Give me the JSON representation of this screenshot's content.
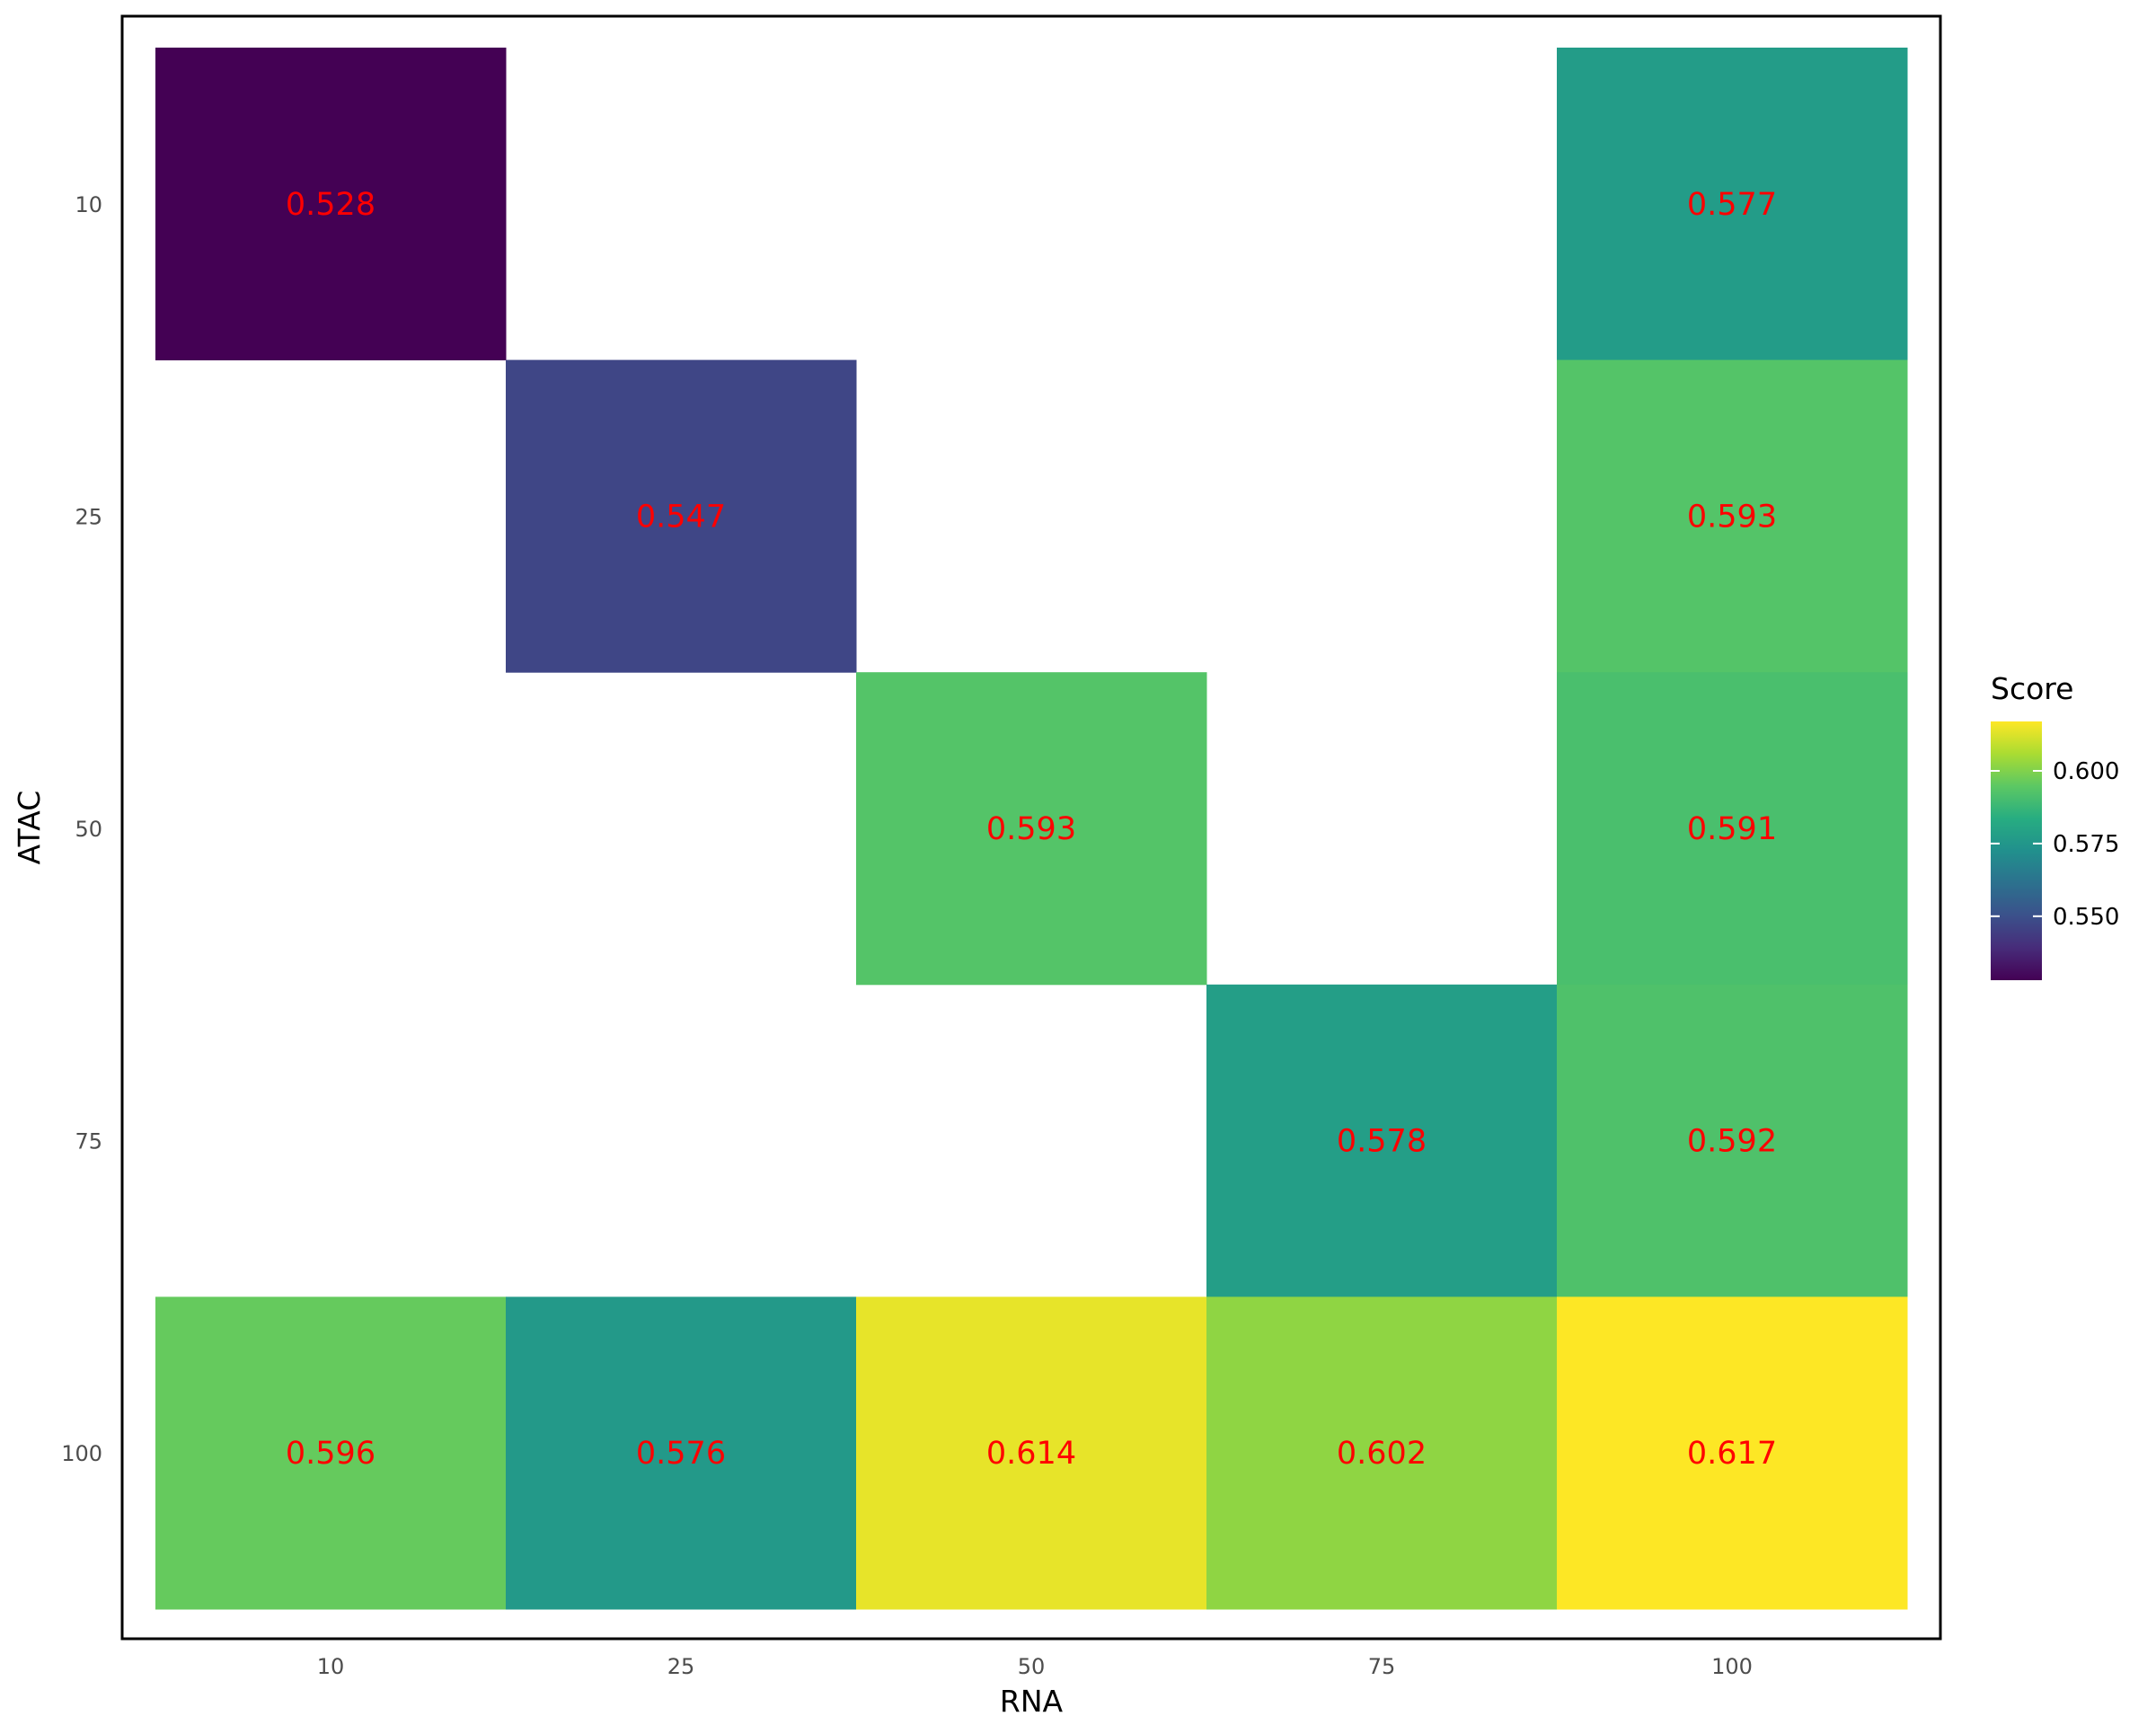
{
  "chart_data": {
    "type": "heatmap",
    "xlabel": "RNA",
    "ylabel": "ATAC",
    "x_categories": [
      "10",
      "25",
      "50",
      "75",
      "100"
    ],
    "y_categories": [
      "10",
      "25",
      "50",
      "75",
      "100"
    ],
    "cells": [
      {
        "x": "10",
        "y": "10",
        "value": 0.528,
        "label": "0.528"
      },
      {
        "x": "100",
        "y": "10",
        "value": 0.577,
        "label": "0.577"
      },
      {
        "x": "25",
        "y": "25",
        "value": 0.547,
        "label": "0.547"
      },
      {
        "x": "100",
        "y": "25",
        "value": 0.593,
        "label": "0.593"
      },
      {
        "x": "50",
        "y": "50",
        "value": 0.593,
        "label": "0.593"
      },
      {
        "x": "100",
        "y": "50",
        "value": 0.591,
        "label": "0.591"
      },
      {
        "x": "75",
        "y": "75",
        "value": 0.578,
        "label": "0.578"
      },
      {
        "x": "100",
        "y": "75",
        "value": 0.592,
        "label": "0.592"
      },
      {
        "x": "10",
        "y": "100",
        "value": 0.596,
        "label": "0.596"
      },
      {
        "x": "25",
        "y": "100",
        "value": 0.576,
        "label": "0.576"
      },
      {
        "x": "50",
        "y": "100",
        "value": 0.614,
        "label": "0.614"
      },
      {
        "x": "75",
        "y": "100",
        "value": 0.602,
        "label": "0.602"
      },
      {
        "x": "100",
        "y": "100",
        "value": 0.617,
        "label": "0.617"
      }
    ],
    "label_color": "#ff0000",
    "colorscale": "viridis",
    "value_range": [
      0.528,
      0.617
    ],
    "legend": {
      "title": "Score",
      "ticks": [
        "0.550",
        "0.575",
        "0.600"
      ],
      "placement": "right"
    },
    "grid": false
  }
}
